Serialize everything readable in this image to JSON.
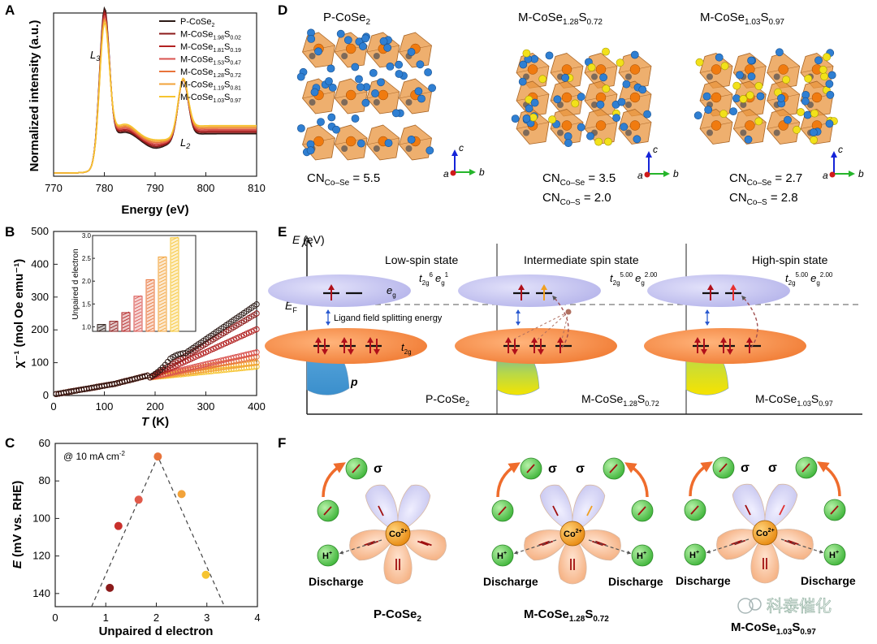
{
  "panel_letters": [
    "A",
    "B",
    "C",
    "D",
    "E",
    "F"
  ],
  "chart_data": [
    {
      "panel": "A",
      "type": "line",
      "xlabel": "Energy (eV)",
      "ylabel": "Normalized intensity (a.u.)",
      "xlim": [
        770,
        810
      ],
      "xticks": [
        "770",
        "780",
        "790",
        "800",
        "810"
      ],
      "annotations": [
        "L3",
        "L2"
      ],
      "series": [
        {
          "name": "P-CoSe2",
          "color": "#2b1a16",
          "peak_L3": 0.88,
          "peak_L2": 0.36
        },
        {
          "name": "M-CoSe1.98S0.02",
          "color": "#8b1a1a",
          "peak_L3": 0.86,
          "peak_L2": 0.35
        },
        {
          "name": "M-CoSe1.81S0.19",
          "color": "#b22222",
          "peak_L3": 0.84,
          "peak_L2": 0.34
        },
        {
          "name": "M-CoSe1.53S0.47",
          "color": "#d9534f",
          "peak_L3": 0.82,
          "peak_L2": 0.34
        },
        {
          "name": "M-CoSe1.28S0.72",
          "color": "#e8743b",
          "peak_L3": 0.8,
          "peak_L2": 0.33
        },
        {
          "name": "M-CoSe1.19S0.81",
          "color": "#f2a33a",
          "peak_L3": 0.79,
          "peak_L2": 0.33
        },
        {
          "name": "M-CoSe1.03S0.97",
          "color": "#f6c430",
          "peak_L3": 0.77,
          "peak_L2": 0.32
        }
      ],
      "legend_labels": [
        [
          "P-CoSe",
          "2",
          "",
          ""
        ],
        [
          "M-CoSe",
          "1.98",
          "S",
          "0.02"
        ],
        [
          "M-CoSe",
          "1.81",
          "S",
          "0.19"
        ],
        [
          "M-CoSe",
          "1.53",
          "S",
          "0.47"
        ],
        [
          "M-CoSe",
          "1.28",
          "S",
          "0.72"
        ],
        [
          "M-CoSe",
          "1.19",
          "S",
          "0.81"
        ],
        [
          "M-CoSe",
          "1.03",
          "S",
          "0.97"
        ]
      ]
    },
    {
      "panel": "B",
      "type": "scatter",
      "xlabel": "T (K)",
      "ylabel": "χ⁻¹ (mol Oe emu⁻¹)",
      "xlim": [
        0,
        400
      ],
      "ylim": [
        0,
        500
      ],
      "xticks": [
        "0",
        "100",
        "200",
        "300",
        "400"
      ],
      "yticks": [
        "0",
        "100",
        "200",
        "300",
        "400",
        "500"
      ],
      "series": [
        {
          "name": "P-CoSe2",
          "color": "#2b1a16",
          "values_at_400": 278
        },
        {
          "name": "M-CoSe1.98S0.02",
          "color": "#8b1a1a",
          "values_at_400": 250
        },
        {
          "name": "M-CoSe1.81S0.19",
          "color": "#b22222",
          "values_at_400": 202
        },
        {
          "name": "M-CoSe1.53S0.47",
          "color": "#d9534f",
          "values_at_400": 132
        },
        {
          "name": "M-CoSe1.28S0.72",
          "color": "#e8743b",
          "values_at_400": 118
        },
        {
          "name": "M-CoSe1.19S0.81",
          "color": "#f2a33a",
          "values_at_400": 100
        },
        {
          "name": "M-CoSe1.03S0.97",
          "color": "#f6c430",
          "values_at_400": 88
        }
      ],
      "inset": {
        "type": "bar",
        "ylabel": "Unpaired d electron",
        "ylim": [
          0.9,
          3.0
        ],
        "yticks": [
          "1.0",
          "1.5",
          "2.0",
          "2.5",
          "3.0"
        ],
        "values": [
          1.05,
          1.12,
          1.31,
          1.67,
          2.03,
          2.53,
          2.95
        ],
        "colors": [
          "#2b1a16",
          "#8b1a1a",
          "#b22222",
          "#d9534f",
          "#e8743b",
          "#f2a33a",
          "#f6c430"
        ]
      }
    },
    {
      "panel": "C",
      "type": "scatter",
      "xlabel": "Unpaired d electron",
      "ylabel": "E (mV vs. RHE)",
      "annotation": "@ 10 mA cm",
      "annotation_sup": "-2",
      "xlim": [
        0,
        4
      ],
      "ylim": [
        147,
        60
      ],
      "xticks": [
        "0",
        "1",
        "2",
        "3",
        "4"
      ],
      "yticks": [
        "60",
        "80",
        "100",
        "120",
        "140"
      ],
      "points": [
        {
          "x": 1.08,
          "y": 137,
          "color": "#8b1a1a"
        },
        {
          "x": 1.25,
          "y": 104,
          "color": "#c9302c"
        },
        {
          "x": 1.65,
          "y": 90,
          "color": "#e15a4a"
        },
        {
          "x": 2.03,
          "y": 67,
          "color": "#e8743b"
        },
        {
          "x": 2.5,
          "y": 87,
          "color": "#f2a33a"
        },
        {
          "x": 2.98,
          "y": 130,
          "color": "#f6c430"
        }
      ],
      "trend": [
        [
          0.72,
          147
        ],
        [
          2.03,
          67
        ],
        [
          3.35,
          147
        ]
      ]
    }
  ],
  "panel_D": {
    "structures": [
      {
        "name": "P-CoSe",
        "sub": "2",
        "cn": [
          {
            "main": "CN",
            "sub": "Co–Se",
            "value": " = 5.5"
          }
        ]
      },
      {
        "name": "M-CoSe",
        "sub": "1.28",
        "name2": "S",
        "sub2": "0.72",
        "cn": [
          {
            "main": "CN",
            "sub": "Co–Se",
            "value": " = 3.5"
          },
          {
            "main": "CN",
            "sub": "Co–S",
            "value": " = 2.0"
          }
        ]
      },
      {
        "name": "M-CoSe",
        "sub": "1.03",
        "name2": "S",
        "sub2": "0.97",
        "cn": [
          {
            "main": "CN",
            "sub": "Co–Se",
            "value": " = 2.7"
          },
          {
            "main": "CN",
            "sub": "Co–S",
            "value": " = 2.8"
          }
        ]
      }
    ],
    "axes_labels": [
      "c",
      "a",
      "b"
    ]
  },
  "panel_E": {
    "yaxis": "E (eV)",
    "fermi": "E",
    "fermi_sub": "F",
    "states": [
      "Low-spin state",
      "Intermediate spin state",
      "High-spin state"
    ],
    "configs": [
      {
        "t": "t",
        "tsub": "2g",
        "tsup": "6",
        "e": "e",
        "esub": "g",
        "esup": "1"
      },
      {
        "t": "t",
        "tsub": "2g",
        "tsup": "5.00",
        "e": "e",
        "esub": "g",
        "esup": "2.00"
      },
      {
        "t": "t",
        "tsub": "2g",
        "tsup": "5.00",
        "e": "e",
        "esub": "g",
        "esup": "2.00"
      }
    ],
    "eg": "e",
    "eg_sub": "g",
    "t2g": "t",
    "t2g_sub": "2g",
    "p": "p",
    "splitting": "Ligand field splitting energy",
    "materials": [
      {
        "name": "P-CoSe",
        "sub": "2"
      },
      {
        "name": "M-CoSe",
        "sub": "1.28",
        "name2": "S",
        "sub2": "0.72"
      },
      {
        "name": "M-CoSe",
        "sub": "1.03",
        "name2": "S",
        "sub2": "0.97"
      }
    ]
  },
  "panel_F": {
    "center": "Co",
    "center_sup": "2+",
    "proton": "H",
    "proton_sup": "+",
    "sigma": "σ",
    "discharge": "Discharge",
    "materials": [
      {
        "name": "P-CoSe",
        "sub": "2"
      },
      {
        "name": "M-CoSe",
        "sub": "1.28",
        "name2": "S",
        "sub2": "0.72"
      },
      {
        "name": "M-CoSe",
        "sub": "1.03",
        "name2": "S",
        "sub2": "0.97"
      }
    ]
  },
  "watermark": "科泰催化"
}
